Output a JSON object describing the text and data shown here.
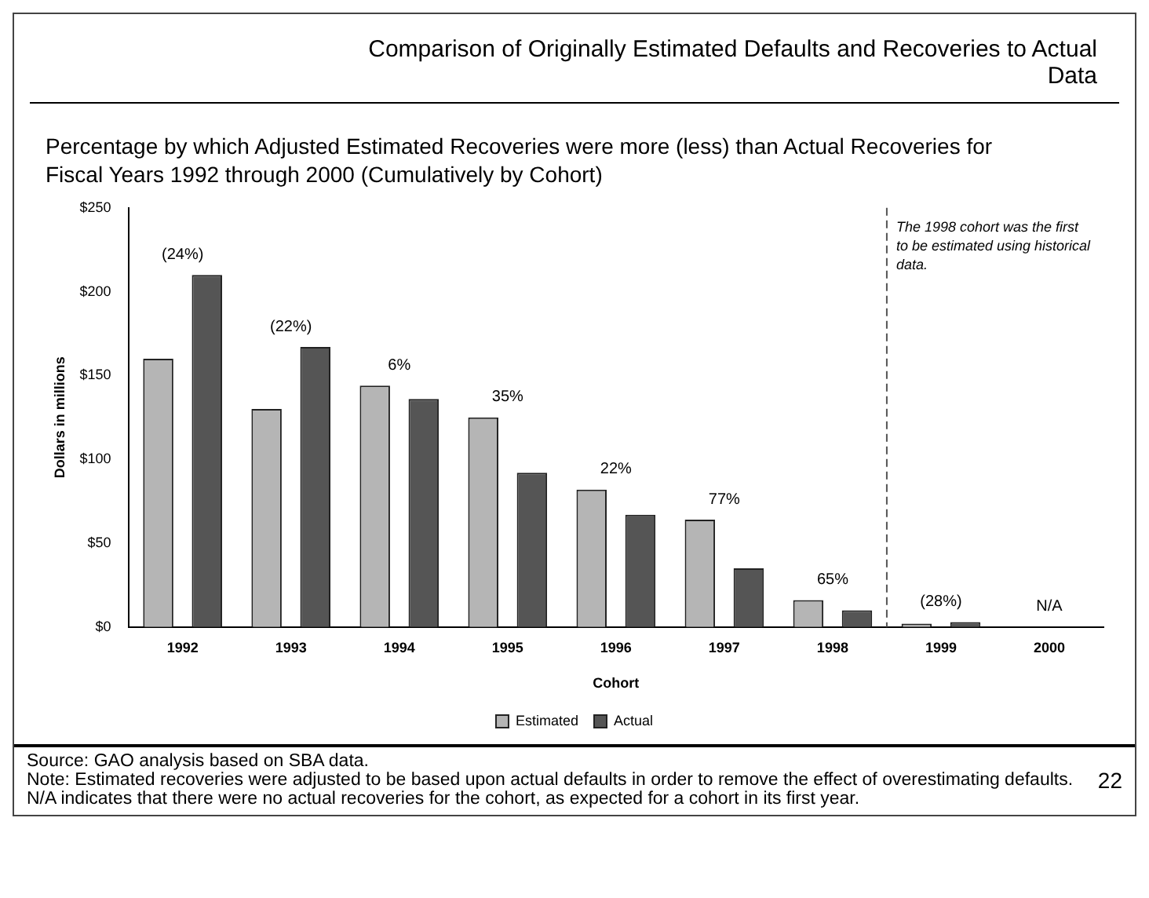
{
  "chart_data": {
    "type": "bar",
    "title": "Comparison of Originally Estimated Defaults and Recoveries to Actual Data",
    "subtitle": "Percentage by which Adjusted Estimated Recoveries were more (less) than Actual Recoveries for Fiscal Years 1992 through 2000 (Cumulatively by Cohort)",
    "xlabel": "Cohort",
    "ylabel": "Dollars in millions",
    "categories": [
      "1992",
      "1993",
      "1994",
      "1995",
      "1996",
      "1997",
      "1998",
      "1999",
      "2000"
    ],
    "series": [
      {
        "name": "Estimated",
        "color": "#b5b5b5",
        "values": [
          160,
          130,
          144,
          125,
          82,
          64,
          16,
          2,
          null
        ]
      },
      {
        "name": "Actual",
        "color": "#555555",
        "values": [
          210,
          167,
          136,
          92,
          67,
          35,
          10,
          3,
          null
        ]
      }
    ],
    "ylim": [
      0,
      250
    ],
    "yticks": [
      {
        "value": 0,
        "label": "$0"
      },
      {
        "value": 50,
        "label": "$50"
      },
      {
        "value": 100,
        "label": "$100"
      },
      {
        "value": 150,
        "label": "$150"
      },
      {
        "value": 200,
        "label": "$200"
      },
      {
        "value": 250,
        "label": "$250"
      }
    ],
    "grid": false,
    "legend": "bottom",
    "annotations": [
      "(24%)",
      "(22%)",
      "6%",
      "35%",
      "22%",
      "77%",
      "65%",
      "(28%)",
      "N/A",
      "The 1998 cohort was the first to be estimated using historical data.",
      "Source: GAO analysis based on SBA data.",
      "Note: Estimated recoveries were adjusted to be based upon actual defaults in order to remove the effect of overestimating defaults. N/A indicates that there were no actual recoveries for the cohort, as expected for a cohort in its first year.",
      "22"
    ]
  }
}
